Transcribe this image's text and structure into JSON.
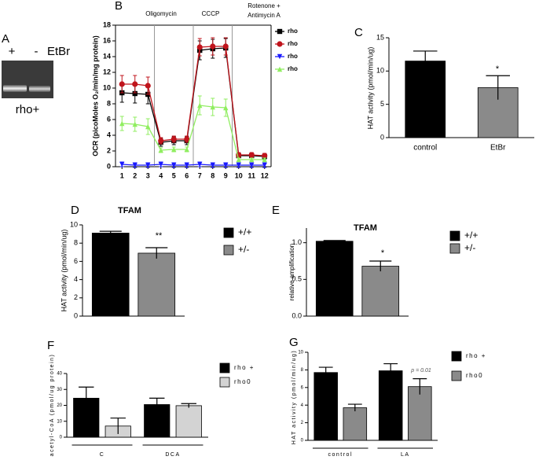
{
  "gel": {
    "panel": "A",
    "lanes": [
      "+",
      "-"
    ],
    "reagent": "EtBr",
    "caption": "rho+"
  },
  "chart_data": [
    {
      "type": "line",
      "panel": "B",
      "y_label": "OCR (picoMoles O₂/min/mg protein)",
      "categories": [
        1,
        2,
        3,
        4,
        5,
        6,
        7,
        8,
        9,
        10,
        11,
        12
      ],
      "annotations": [
        "Oligomycin",
        "CCCP",
        "Rotenone +",
        "Antimycin A"
      ],
      "ylim": [
        0,
        18
      ],
      "yticks": [
        0,
        2,
        4,
        6,
        8,
        10,
        12,
        14,
        16,
        18
      ],
      "series": [
        {
          "name": "rho",
          "color": "#000000",
          "marker": "square",
          "values": [
            9.4,
            9.3,
            9.2,
            3.1,
            3.3,
            3.3,
            14.8,
            15.0,
            15.1,
            1.4,
            1.4,
            1.3
          ],
          "errors": [
            1.2,
            1.2,
            1.2,
            0.5,
            0.5,
            0.5,
            1.2,
            1.2,
            1.2,
            0.3,
            0.3,
            0.3
          ]
        },
        {
          "name": "rho",
          "color": "#c0141c",
          "marker": "circle",
          "values": [
            10.5,
            10.5,
            10.3,
            3.3,
            3.5,
            3.5,
            15.2,
            15.3,
            15.3,
            1.5,
            1.5,
            1.4
          ],
          "errors": [
            1.1,
            1.1,
            1.1,
            0.4,
            0.4,
            0.4,
            1.1,
            1.1,
            1.1,
            0.3,
            0.3,
            0.3
          ]
        },
        {
          "name": "rho",
          "color": "#1a1aff",
          "marker": "triangle-down",
          "values": [
            0.3,
            0.2,
            0.2,
            0.3,
            0.2,
            0.2,
            0.3,
            0.2,
            0.2,
            0.2,
            0.2,
            0.2
          ],
          "errors": [
            0.3,
            0.3,
            0.3,
            0.3,
            0.3,
            0.3,
            0.3,
            0.3,
            0.3,
            0.3,
            0.3,
            0.3
          ]
        },
        {
          "name": "rho",
          "color": "#90ee60",
          "marker": "triangle-up",
          "values": [
            5.5,
            5.4,
            5.1,
            2.1,
            2.2,
            2.2,
            7.8,
            7.6,
            7.5,
            0.9,
            0.9,
            0.9
          ],
          "errors": [
            0.9,
            0.9,
            1.0,
            0.3,
            0.3,
            0.3,
            1.2,
            1.1,
            1.1,
            0.2,
            0.2,
            0.2
          ]
        }
      ]
    },
    {
      "type": "bar",
      "panel": "C",
      "y_label": "HAT activity (pmol/min/ug)",
      "categories": [
        "control",
        "EtBr"
      ],
      "annotations": [
        "*"
      ],
      "ylim": [
        0,
        15
      ],
      "yticks": [
        0,
        5,
        10,
        15
      ],
      "series": [
        {
          "colors": [
            "#000000",
            "#8a8a8a"
          ],
          "values": [
            11.5,
            7.5
          ],
          "errors": [
            1.5,
            1.8
          ]
        }
      ]
    },
    {
      "type": "bar",
      "panel": "D",
      "title": "TFAM",
      "y_label": "HAT activity (pmol/min/ug)",
      "categories": [
        null
      ],
      "annotations": [
        "**"
      ],
      "ylim": [
        0,
        10
      ],
      "yticks": [
        0,
        2,
        4,
        6,
        8,
        10
      ],
      "series": [
        {
          "name": "+/+",
          "color": "#000000",
          "values": [
            9.1
          ],
          "errors": [
            0.2
          ]
        },
        {
          "name": "+/-",
          "color": "#8a8a8a",
          "values": [
            6.9
          ],
          "errors": [
            0.6
          ]
        }
      ]
    },
    {
      "type": "bar",
      "panel": "E",
      "title": "TFAM",
      "y_label": "relative amplification",
      "categories": [
        null
      ],
      "annotations": [
        "*"
      ],
      "ylim": [
        0,
        1.2
      ],
      "yticks": [
        {
          "value": 0,
          "label": "0.0"
        },
        {
          "value": 0.5,
          "label": "0.5"
        },
        {
          "value": 1,
          "label": "1.0"
        }
      ],
      "series": [
        {
          "name": "+/+",
          "color": "#000000",
          "values": [
            1.02
          ],
          "errors": [
            0.01
          ]
        },
        {
          "name": "+/-",
          "color": "#8a8a8a",
          "values": [
            0.68
          ],
          "errors": [
            0.07
          ]
        }
      ]
    },
    {
      "type": "bar",
      "panel": "F",
      "y_label": "acetyl-CoA (pmol/ug protein)",
      "categories": [
        "C",
        "DCA"
      ],
      "ylim": [
        0,
        40
      ],
      "yticks": [
        0,
        10,
        20,
        30,
        40
      ],
      "series": [
        {
          "name": "rho +",
          "color": "#000000",
          "values": [
            24.5,
            20.5
          ],
          "errors": [
            7,
            4
          ]
        },
        {
          "name": "rho0",
          "color": "#d3d3d3",
          "values": [
            7,
            19.8
          ],
          "errors": [
            5,
            1.3
          ]
        }
      ]
    },
    {
      "type": "bar",
      "panel": "G",
      "y_label": "HAT activity (pmol/min/ug)",
      "categories": [
        "control",
        "LA"
      ],
      "annotations": [
        "p = 0.01"
      ],
      "ylim": [
        0,
        10
      ],
      "yticks": [
        0,
        2,
        4,
        6,
        8,
        10
      ],
      "series": [
        {
          "name": "rho +",
          "color": "#000000",
          "values": [
            7.7,
            7.9
          ],
          "errors": [
            0.6,
            0.8
          ]
        },
        {
          "name": "rho0",
          "color": "#8a8a8a",
          "values": [
            3.7,
            6.1
          ],
          "errors": [
            0.4,
            0.9
          ]
        }
      ]
    }
  ]
}
